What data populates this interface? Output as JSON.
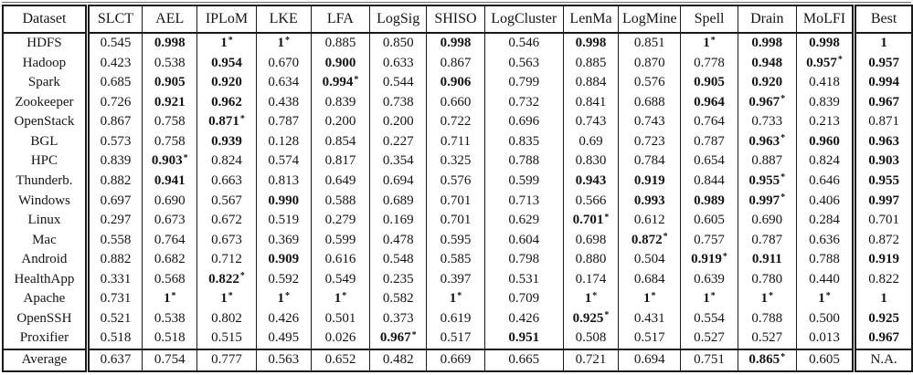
{
  "table": {
    "columns": [
      "Dataset",
      "SLCT",
      "AEL",
      "IPLoM",
      "LKE",
      "LFA",
      "LogSig",
      "SHISO",
      "LogCluster",
      "LenMa",
      "LogMine",
      "Spell",
      "Drain",
      "MoLFI",
      "Best"
    ],
    "bold_rule": "accuracy > 0.9 or best-in-row (asterisk) shown in bold; asterisk marks best parser per dataset",
    "rows": [
      {
        "dataset": "HDFS",
        "cells": [
          "0.545",
          "0.998",
          "1*",
          "1*",
          "0.885",
          "0.850",
          "0.998",
          "0.546",
          "0.998",
          "0.851",
          "1*",
          "0.998",
          "0.998",
          "1"
        ],
        "bold": [
          0,
          1,
          1,
          1,
          0,
          0,
          1,
          0,
          1,
          0,
          1,
          1,
          1,
          1
        ]
      },
      {
        "dataset": "Hadoop",
        "cells": [
          "0.423",
          "0.538",
          "0.954",
          "0.670",
          "0.900",
          "0.633",
          "0.867",
          "0.563",
          "0.885",
          "0.870",
          "0.778",
          "0.948",
          "0.957*",
          "0.957"
        ],
        "bold": [
          0,
          0,
          1,
          0,
          1,
          0,
          0,
          0,
          0,
          0,
          0,
          1,
          1,
          1
        ]
      },
      {
        "dataset": "Spark",
        "cells": [
          "0.685",
          "0.905",
          "0.920",
          "0.634",
          "0.994*",
          "0.544",
          "0.906",
          "0.799",
          "0.884",
          "0.576",
          "0.905",
          "0.920",
          "0.418",
          "0.994"
        ],
        "bold": [
          0,
          1,
          1,
          0,
          1,
          0,
          1,
          0,
          0,
          0,
          1,
          1,
          0,
          1
        ]
      },
      {
        "dataset": "Zookeeper",
        "cells": [
          "0.726",
          "0.921",
          "0.962",
          "0.438",
          "0.839",
          "0.738",
          "0.660",
          "0.732",
          "0.841",
          "0.688",
          "0.964",
          "0.967*",
          "0.839",
          "0.967"
        ],
        "bold": [
          0,
          1,
          1,
          0,
          0,
          0,
          0,
          0,
          0,
          0,
          1,
          1,
          0,
          1
        ]
      },
      {
        "dataset": "OpenStack",
        "cells": [
          "0.867",
          "0.758",
          "0.871*",
          "0.787",
          "0.200",
          "0.200",
          "0.722",
          "0.696",
          "0.743",
          "0.743",
          "0.764",
          "0.733",
          "0.213",
          "0.871"
        ],
        "bold": [
          0,
          0,
          1,
          0,
          0,
          0,
          0,
          0,
          0,
          0,
          0,
          0,
          0,
          0
        ]
      },
      {
        "dataset": "BGL",
        "cells": [
          "0.573",
          "0.758",
          "0.939",
          "0.128",
          "0.854",
          "0.227",
          "0.711",
          "0.835",
          "0.69",
          "0.723",
          "0.787",
          "0.963*",
          "0.960",
          "0.963"
        ],
        "bold": [
          0,
          0,
          1,
          0,
          0,
          0,
          0,
          0,
          0,
          0,
          0,
          1,
          1,
          1
        ]
      },
      {
        "dataset": "HPC",
        "cells": [
          "0.839",
          "0.903*",
          "0.824",
          "0.574",
          "0.817",
          "0.354",
          "0.325",
          "0.788",
          "0.830",
          "0.784",
          "0.654",
          "0.887",
          "0.824",
          "0.903"
        ],
        "bold": [
          0,
          1,
          0,
          0,
          0,
          0,
          0,
          0,
          0,
          0,
          0,
          0,
          0,
          1
        ]
      },
      {
        "dataset": "Thunderb.",
        "cells": [
          "0.882",
          "0.941",
          "0.663",
          "0.813",
          "0.649",
          "0.694",
          "0.576",
          "0.599",
          "0.943",
          "0.919",
          "0.844",
          "0.955*",
          "0.646",
          "0.955"
        ],
        "bold": [
          0,
          1,
          0,
          0,
          0,
          0,
          0,
          0,
          1,
          1,
          0,
          1,
          0,
          1
        ]
      },
      {
        "dataset": "Windows",
        "cells": [
          "0.697",
          "0.690",
          "0.567",
          "0.990",
          "0.588",
          "0.689",
          "0.701",
          "0.713",
          "0.566",
          "0.993",
          "0.989",
          "0.997*",
          "0.406",
          "0.997"
        ],
        "bold": [
          0,
          0,
          0,
          1,
          0,
          0,
          0,
          0,
          0,
          1,
          1,
          1,
          0,
          1
        ]
      },
      {
        "dataset": "Linux",
        "cells": [
          "0.297",
          "0.673",
          "0.672",
          "0.519",
          "0.279",
          "0.169",
          "0.701",
          "0.629",
          "0.701*",
          "0.612",
          "0.605",
          "0.690",
          "0.284",
          "0.701"
        ],
        "bold": [
          0,
          0,
          0,
          0,
          0,
          0,
          0,
          0,
          1,
          0,
          0,
          0,
          0,
          0
        ]
      },
      {
        "dataset": "Mac",
        "cells": [
          "0.558",
          "0.764",
          "0.673",
          "0.369",
          "0.599",
          "0.478",
          "0.595",
          "0.604",
          "0.698",
          "0.872*",
          "0.757",
          "0.787",
          "0.636",
          "0.872"
        ],
        "bold": [
          0,
          0,
          0,
          0,
          0,
          0,
          0,
          0,
          0,
          1,
          0,
          0,
          0,
          0
        ]
      },
      {
        "dataset": "Android",
        "cells": [
          "0.882",
          "0.682",
          "0.712",
          "0.909",
          "0.616",
          "0.548",
          "0.585",
          "0.798",
          "0.880",
          "0.504",
          "0.919*",
          "0.911",
          "0.788",
          "0.919"
        ],
        "bold": [
          0,
          0,
          0,
          1,
          0,
          0,
          0,
          0,
          0,
          0,
          1,
          1,
          0,
          1
        ]
      },
      {
        "dataset": "HealthApp",
        "cells": [
          "0.331",
          "0.568",
          "0.822*",
          "0.592",
          "0.549",
          "0.235",
          "0.397",
          "0.531",
          "0.174",
          "0.684",
          "0.639",
          "0.780",
          "0.440",
          "0.822"
        ],
        "bold": [
          0,
          0,
          1,
          0,
          0,
          0,
          0,
          0,
          0,
          0,
          0,
          0,
          0,
          0
        ]
      },
      {
        "dataset": "Apache",
        "cells": [
          "0.731",
          "1*",
          "1*",
          "1*",
          "1*",
          "0.582",
          "1*",
          "0.709",
          "1*",
          "1*",
          "1*",
          "1*",
          "1*",
          "1"
        ],
        "bold": [
          0,
          1,
          1,
          1,
          1,
          0,
          1,
          0,
          1,
          1,
          1,
          1,
          1,
          1
        ]
      },
      {
        "dataset": "OpenSSH",
        "cells": [
          "0.521",
          "0.538",
          "0.802",
          "0.426",
          "0.501",
          "0.373",
          "0.619",
          "0.426",
          "0.925*",
          "0.431",
          "0.554",
          "0.788",
          "0.500",
          "0.925"
        ],
        "bold": [
          0,
          0,
          0,
          0,
          0,
          0,
          0,
          0,
          1,
          0,
          0,
          0,
          0,
          1
        ]
      },
      {
        "dataset": "Proxifier",
        "cells": [
          "0.518",
          "0.518",
          "0.515",
          "0.495",
          "0.026",
          "0.967*",
          "0.517",
          "0.951",
          "0.508",
          "0.517",
          "0.527",
          "0.527",
          "0.013",
          "0.967"
        ],
        "bold": [
          0,
          0,
          0,
          0,
          0,
          1,
          0,
          1,
          0,
          0,
          0,
          0,
          0,
          1
        ]
      }
    ],
    "average_row": {
      "dataset": "Average",
      "cells": [
        "0.637",
        "0.754",
        "0.777",
        "0.563",
        "0.652",
        "0.482",
        "0.669",
        "0.665",
        "0.721",
        "0.694",
        "0.751",
        "0.865*",
        "0.605",
        "N.A."
      ],
      "bold": [
        0,
        0,
        0,
        0,
        0,
        0,
        0,
        0,
        0,
        0,
        0,
        1,
        0,
        0
      ]
    }
  }
}
